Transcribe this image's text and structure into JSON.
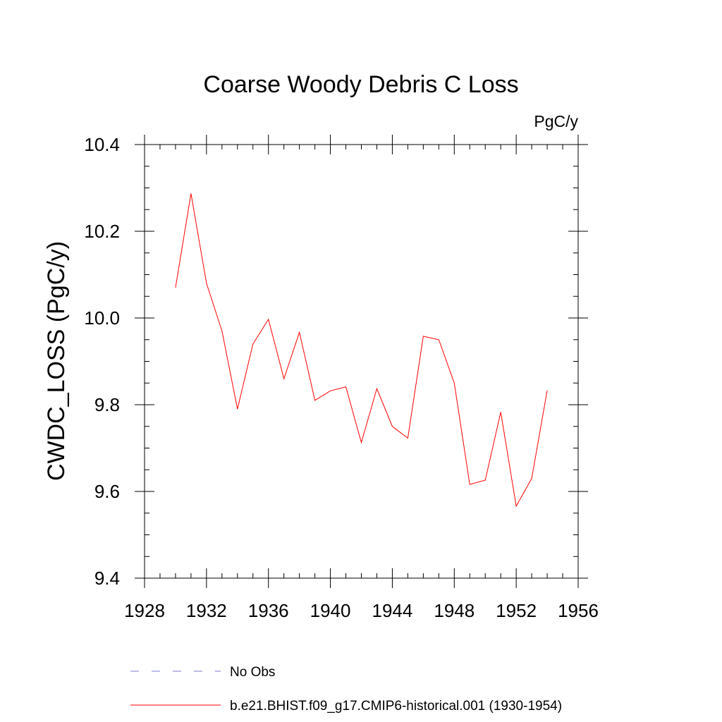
{
  "chart_data": {
    "type": "line",
    "title": "Coarse Woody Debris C Loss",
    "units_label": "PgC/y",
    "ylabel": "CWDC_LOSS  (PgC/y)",
    "xlabel": "",
    "xlim": [
      1928,
      1956
    ],
    "ylim": [
      9.4,
      10.4
    ],
    "x_ticks": [
      "1928",
      "1932",
      "1936",
      "1940",
      "1944",
      "1948",
      "1952",
      "1956"
    ],
    "y_ticks": [
      "9.4",
      "9.6",
      "9.8",
      "10.0",
      "10.2",
      "10.4"
    ],
    "x_tick_values": [
      1928,
      1932,
      1936,
      1940,
      1944,
      1948,
      1952,
      1956
    ],
    "y_tick_values": [
      9.4,
      9.6,
      9.8,
      10.0,
      10.2,
      10.4
    ],
    "grid": false,
    "legend_position": "bottom",
    "series": [
      {
        "name": "b.e21.BHIST.f09_g17.CMIP6-historical.001 (1930-1954)",
        "color": "#ff0000",
        "style": "solid",
        "x": [
          1930,
          1931,
          1932,
          1933,
          1934,
          1935,
          1936,
          1937,
          1938,
          1939,
          1940,
          1941,
          1942,
          1943,
          1944,
          1945,
          1946,
          1947,
          1948,
          1949,
          1950,
          1951,
          1952,
          1953,
          1954
        ],
        "y": [
          10.07,
          10.287,
          10.08,
          9.97,
          9.79,
          9.94,
          9.997,
          9.86,
          9.967,
          9.81,
          9.832,
          9.841,
          9.713,
          9.837,
          9.75,
          9.723,
          9.958,
          9.95,
          9.85,
          9.616,
          9.626,
          9.783,
          9.566,
          9.63,
          9.833
        ]
      }
    ],
    "legend": [
      {
        "label": "No Obs",
        "color": "#7b7bd0",
        "style": "dashed"
      },
      {
        "label": "b.e21.BHIST.f09_g17.CMIP6-historical.001 (1930-1954)",
        "color": "#ff0000",
        "style": "solid"
      }
    ]
  }
}
